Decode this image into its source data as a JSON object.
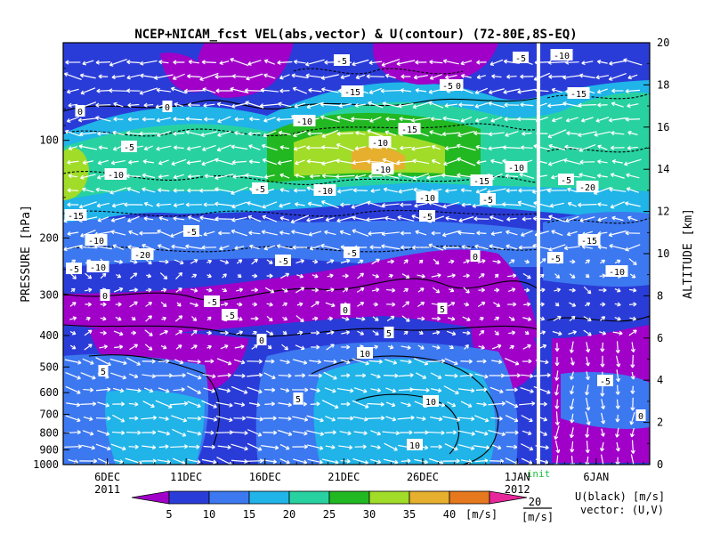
{
  "chart_data": {
    "type": "heatmap",
    "title": "NCEP+NICAM_fcst VEL(abs,vector) & U(contour)  (72-80E,8S-EQ)",
    "ylabel_left": "PRESSURE [hPa]",
    "ylabel_right": "ALTITUDE [km]",
    "x_tick_labels": [
      {
        "label": "6DEC",
        "sub": "2011",
        "day": 6
      },
      {
        "label": "11DEC",
        "sub": "",
        "day": 11
      },
      {
        "label": "16DEC",
        "sub": "",
        "day": 16
      },
      {
        "label": "21DEC",
        "sub": "",
        "day": 21
      },
      {
        "label": "26DEC",
        "sub": "",
        "day": 26
      },
      {
        "label": "1JAN",
        "sub": "2012",
        "day": 32
      },
      {
        "label": "6JAN",
        "sub": "",
        "day": 37
      }
    ],
    "x_range_days": [
      3.2,
      40.4
    ],
    "init_day": 33.0,
    "init_label": "init",
    "pressure_ticks": [
      "100",
      "200",
      "300",
      "400",
      "500",
      "600",
      "700",
      "800",
      "900",
      "1000"
    ],
    "pressure_values": [
      100,
      200,
      300,
      400,
      500,
      600,
      700,
      800,
      900,
      1000
    ],
    "pressure_range": [
      50,
      1000
    ],
    "altitude_ticks": [
      "0",
      "2",
      "4",
      "6",
      "8",
      "10",
      "12",
      "14",
      "16",
      "18",
      "20"
    ],
    "altitude_values": [
      0,
      2,
      4,
      6,
      8,
      10,
      12,
      14,
      16,
      18,
      20
    ],
    "colorbar": {
      "levels": [
        "5",
        "10",
        "15",
        "20",
        "25",
        "30",
        "35",
        "40"
      ],
      "colors": [
        "#a000c8",
        "#2a3cd8",
        "#3c78f0",
        "#20b4e8",
        "#28d2a0",
        "#22b822",
        "#a0dc28",
        "#e6af2d",
        "#e6781e",
        "#e6289b"
      ],
      "units": "[m/s]"
    },
    "contour_labels": [
      "0",
      "-5",
      "-10",
      "-15",
      "-20",
      "5",
      "10"
    ],
    "vector_legend": {
      "value": "20",
      "units": "[m/s]"
    },
    "legend_note_1": "U(black) [m/s]",
    "legend_note_2": "vector: (U,V)"
  }
}
